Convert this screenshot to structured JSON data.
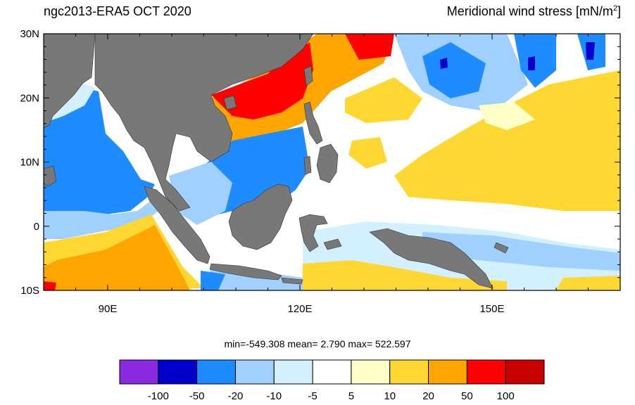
{
  "header": {
    "left_title": "ngc2013-ERA5  OCT 2020",
    "right_title_main": "Meridional wind stress [mN/m",
    "right_title_sup": "2",
    "right_title_end": "]"
  },
  "map": {
    "lon_range": [
      80,
      170
    ],
    "lat_range": [
      -10,
      30
    ],
    "lat_ticks": [
      {
        "value": 30,
        "label": "30N"
      },
      {
        "value": 20,
        "label": "20N"
      },
      {
        "value": 10,
        "label": "10N"
      },
      {
        "value": 0,
        "label": "0"
      },
      {
        "value": -10,
        "label": "10S"
      }
    ],
    "lon_ticks": [
      {
        "value": 90,
        "label": "90E"
      },
      {
        "value": 120,
        "label": "120E"
      },
      {
        "value": 150,
        "label": "150E"
      }
    ],
    "land_color": "#787878"
  },
  "stats": {
    "text": "min=-549.308  mean=   2.790  max= 522.597"
  },
  "colorbar": {
    "colors": [
      "#8a2be2",
      "#0000cd",
      "#1e8cff",
      "#a0d0ff",
      "#d2f0ff",
      "#ffffff",
      "#ffffc8",
      "#ffd732",
      "#ffa500",
      "#ff0000",
      "#c80000"
    ],
    "labels": [
      "-100",
      "-50",
      "-20",
      "-10",
      "-5",
      "5",
      "10",
      "20",
      "50",
      "100"
    ]
  }
}
